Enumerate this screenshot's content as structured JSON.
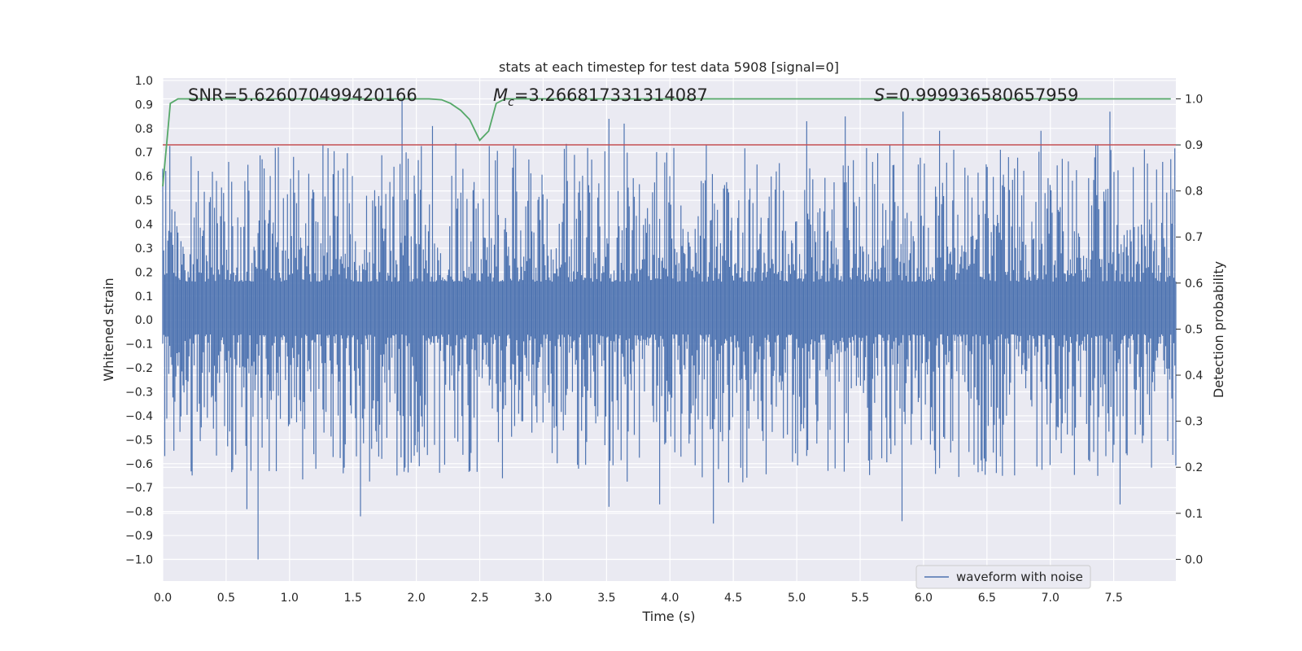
{
  "chart_data": {
    "type": "line",
    "title": "stats at each timestep for test data 5908 [signal=0]",
    "xlabel": "Time (s)",
    "ylabel_left": "Whitened strain",
    "ylabel_right": "Detection probability",
    "xlim": [
      0.0,
      7.99
    ],
    "ylim_left": [
      -1.09,
      1.01
    ],
    "ylim_right": [
      -0.047,
      1.045
    ],
    "x_ticks": [
      "0.0",
      "0.5",
      "1.0",
      "1.5",
      "2.0",
      "2.5",
      "3.0",
      "3.5",
      "4.0",
      "4.5",
      "5.0",
      "5.5",
      "6.0",
      "6.5",
      "7.0",
      "7.5"
    ],
    "y_ticks_left": [
      "−1.0",
      "−0.9",
      "−0.8",
      "−0.7",
      "−0.6",
      "−0.5",
      "−0.4",
      "−0.3",
      "−0.2",
      "−0.1",
      "0.0",
      "0.1",
      "0.2",
      "0.3",
      "0.4",
      "0.5",
      "0.6",
      "0.7",
      "0.8",
      "0.9",
      "1.0"
    ],
    "y_ticks_right": [
      "0.0",
      "0.1",
      "0.2",
      "0.3",
      "0.4",
      "0.5",
      "0.6",
      "0.7",
      "0.8",
      "0.9",
      "1.0"
    ],
    "annotations": {
      "snr": "SNR=5.626070499420166",
      "mc_symbol": "M",
      "mc_subscript": "c",
      "mc_value": "=3.266817331314087",
      "s_symbol": "S",
      "s_value": "=0.999936580657959"
    },
    "legend": {
      "label": "waveform with noise",
      "position": "lower-right"
    },
    "grid": true,
    "series": [
      {
        "name": "waveform with noise",
        "axis": "left",
        "color": "#4c72b0",
        "kind": "noise-strain",
        "sample_count": 1000,
        "approx_range": [
          -1.0,
          0.92
        ],
        "notable_peaks": [
          {
            "x": 1.89,
            "y": 0.92
          },
          {
            "x": 2.13,
            "y": 0.81
          },
          {
            "x": 3.52,
            "y": 0.84
          },
          {
            "x": 3.64,
            "y": 0.82
          },
          {
            "x": 5.08,
            "y": 0.83
          },
          {
            "x": 5.38,
            "y": 0.85
          },
          {
            "x": 5.84,
            "y": 0.87
          },
          {
            "x": 6.13,
            "y": 0.79
          },
          {
            "x": 6.93,
            "y": 0.79
          },
          {
            "x": 7.47,
            "y": 0.87
          },
          {
            "x": 0.75,
            "y": -1.0
          },
          {
            "x": 1.56,
            "y": -0.82
          },
          {
            "x": 0.66,
            "y": -0.79
          },
          {
            "x": 3.52,
            "y": -0.78
          },
          {
            "x": 3.92,
            "y": -0.77
          },
          {
            "x": 4.34,
            "y": -0.85
          },
          {
            "x": 5.83,
            "y": -0.84
          },
          {
            "x": 7.55,
            "y": -0.77
          }
        ]
      },
      {
        "name": "",
        "axis": "right",
        "color": "#c44e52",
        "kind": "threshold",
        "y": 0.9
      },
      {
        "name": "",
        "axis": "right",
        "color": "#55a868",
        "kind": "probability",
        "x": [
          0.0,
          0.03,
          0.06,
          0.12,
          0.2,
          0.5,
          1.0,
          1.5,
          2.0,
          2.1,
          2.2,
          2.27,
          2.35,
          2.42,
          2.5,
          2.57,
          2.63,
          2.7,
          2.8,
          3.0,
          4.0,
          5.0,
          6.0,
          7.0,
          7.95
        ],
        "y": [
          0.81,
          0.9,
          0.99,
          1.0,
          1.0,
          1.0,
          1.0,
          1.0,
          1.0,
          1.0,
          0.998,
          0.99,
          0.975,
          0.955,
          0.91,
          0.93,
          0.99,
          1.0,
          1.0,
          1.0,
          1.0,
          1.0,
          1.0,
          1.0,
          1.0
        ]
      }
    ]
  }
}
